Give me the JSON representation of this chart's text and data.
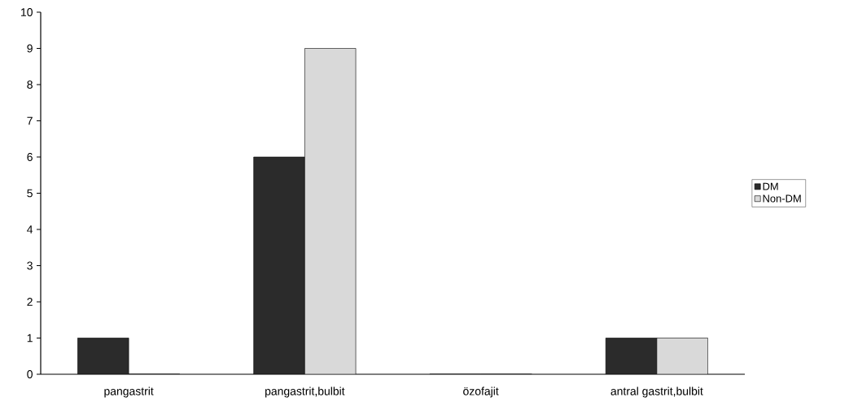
{
  "chart_data": {
    "type": "bar",
    "categories": [
      "pangastrit",
      "pangastrit,bulbit",
      "özofajit",
      "antral gastrit,bulbit"
    ],
    "series": [
      {
        "name": "DM",
        "color": "#2b2b2b",
        "values": [
          1,
          6,
          0,
          1
        ]
      },
      {
        "name": "Non-DM",
        "color": "#d9d9d9",
        "values": [
          0,
          9,
          0,
          1
        ]
      }
    ],
    "ylim": [
      0,
      10
    ],
    "yticks": [
      0,
      1,
      2,
      3,
      4,
      5,
      6,
      7,
      8,
      9,
      10
    ],
    "grid": false,
    "legend": "right"
  }
}
